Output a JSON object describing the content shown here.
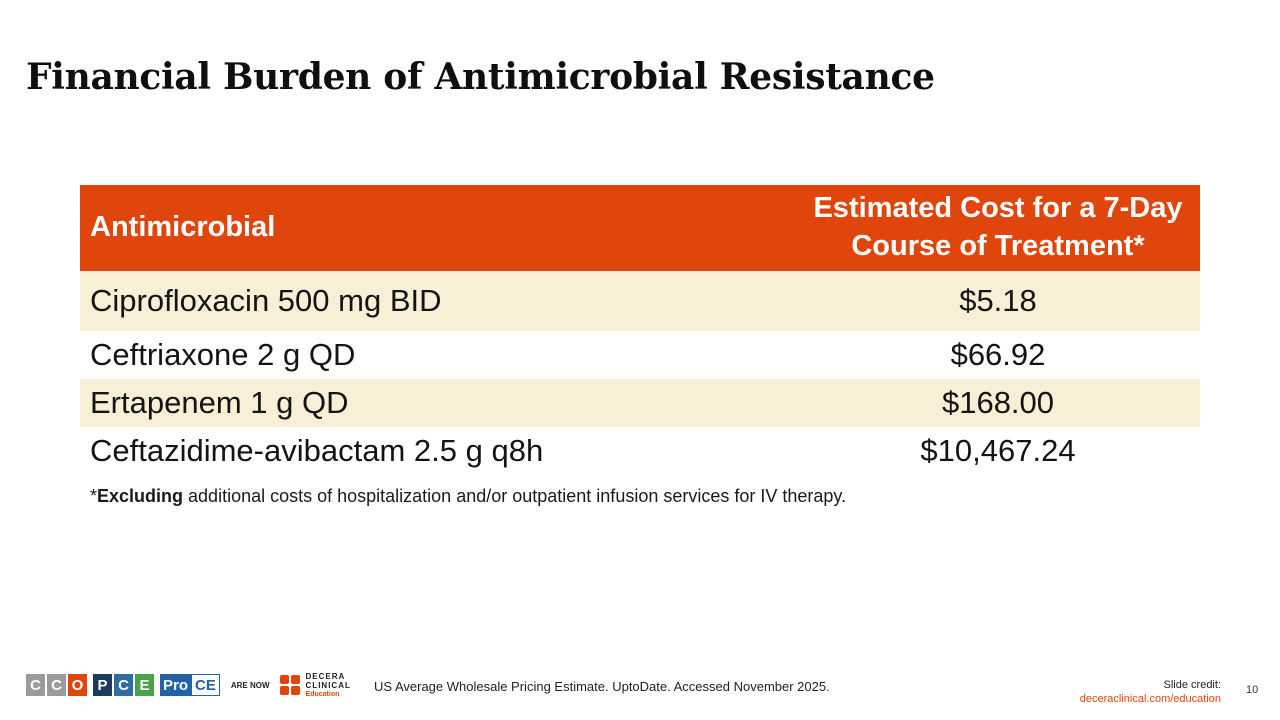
{
  "slide": {
    "title": "Financial Burden of Antimicrobial Resistance",
    "page_number": "10"
  },
  "table": {
    "header": {
      "col1": "Antimicrobial",
      "col2": "Estimated Cost for a 7-Day Course of Treatment*"
    },
    "rows": [
      {
        "drug": "Ciprofloxacin 500 mg BID",
        "cost": "$5.18"
      },
      {
        "drug": "Ceftriaxone 2 g QD",
        "cost": "$66.92"
      },
      {
        "drug": "Ertapenem 1 g QD",
        "cost": "$168.00"
      },
      {
        "drug": "Ceftazidime-avibactam 2.5 g q8h",
        "cost": "$10,467.24"
      }
    ],
    "colors": {
      "header_bg": "#e0450c",
      "shade_bg": "#f8f0d6"
    }
  },
  "footnote": {
    "prefix": "*",
    "bold": "Excluding",
    "rest": " additional costs of hospitalization and/or outpatient infusion services for IV therapy."
  },
  "footer": {
    "reference": "US Average Wholesale Pricing Estimate. UptoDate. Accessed November 2025.",
    "credit_label": "Slide credit:",
    "credit_url": "deceraclinical.com/education",
    "logos": {
      "cco": [
        "C",
        "C",
        "O"
      ],
      "pce": [
        "P",
        "C",
        "E"
      ],
      "proce": [
        "Pro",
        "CE"
      ],
      "are_now": "ARE NOW",
      "decera_line1": "DECERA",
      "decera_line2": "CLINICAL",
      "decera_line3": "Education"
    }
  }
}
